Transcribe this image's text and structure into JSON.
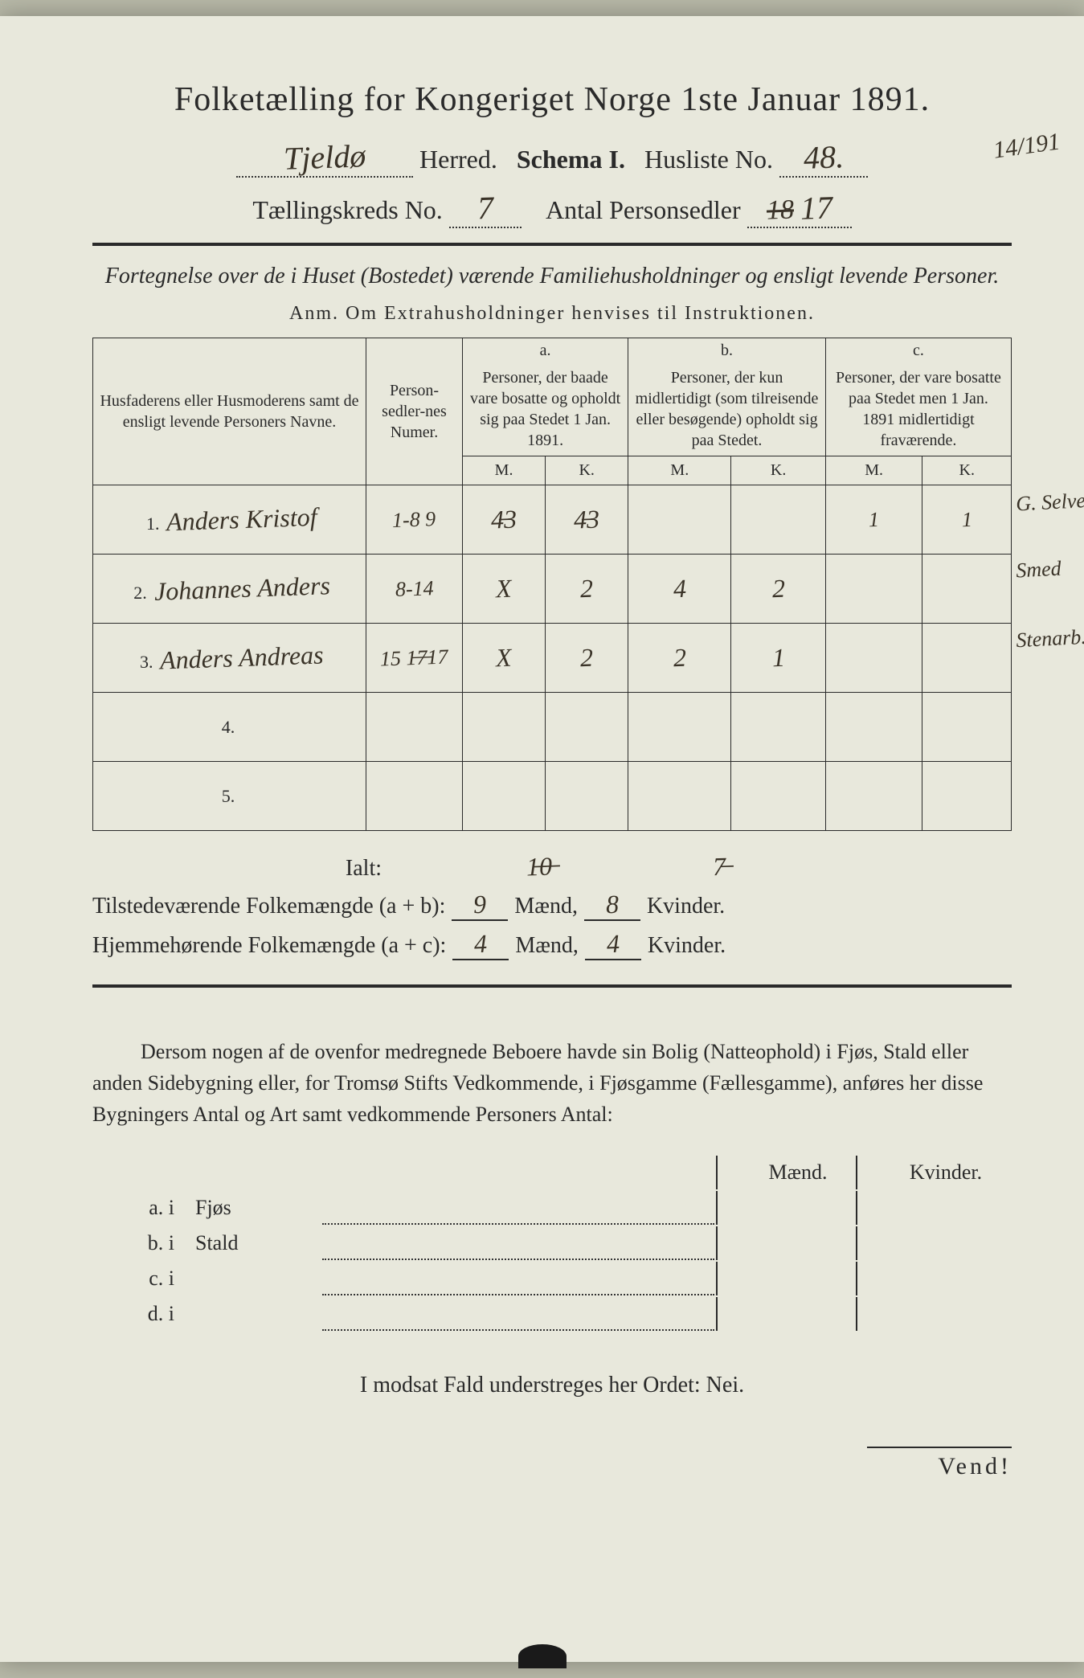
{
  "title": "Folketælling for Kongeriget Norge 1ste Januar 1891.",
  "herred_hw": "Tjeldø",
  "herred_label": "Herred.",
  "schema": "Schema I.",
  "husliste_label": "Husliste No.",
  "husliste_hw": "48.",
  "margin_note": "14/191",
  "kreds_label": "Tællingskreds No.",
  "kreds_hw": "7",
  "antal_label": "Antal Personsedler",
  "antal_hw": "17",
  "antal_struck": "18",
  "subtitle": "Fortegnelse over de i Huset (Bostedet) værende Familiehusholdninger og ensligt levende Personer.",
  "anm": "Anm.  Om Extrahusholdninger henvises til Instruktionen.",
  "hdr": {
    "name": "Husfaderens eller Husmoderens samt de ensligt levende Personers Navne.",
    "num": "Person-sedler-nes Numer.",
    "a_top": "a.",
    "a": "Personer, der baade vare bosatte og opholdt sig paa Stedet 1 Jan. 1891.",
    "b_top": "b.",
    "b": "Personer, der kun midlertidigt (som tilreisende eller besøgende) opholdt sig paa Stedet.",
    "c_top": "c.",
    "c": "Personer, der vare bosatte paa Stedet men 1 Jan. 1891 midlertidigt fraværende.",
    "m": "M.",
    "k": "K."
  },
  "rows": [
    {
      "n": "1.",
      "name": "Anders Kristof",
      "num": "1-8 9",
      "am": "4̶3",
      "ak": "4̶3",
      "bm": "",
      "bk": "",
      "cm": "1",
      "ck": "1",
      "note": "G. Selvei. Fisker"
    },
    {
      "n": "2.",
      "name": "Johannes Anders",
      "num": "8-14",
      "am": "X",
      "ak": "2",
      "bm": "4",
      "bk": "2",
      "cm": "",
      "ck": "",
      "note": "Smed"
    },
    {
      "n": "3.",
      "name": "Anders Andreas",
      "num": "15 1̶7̶17",
      "am": "X",
      "ak": "2",
      "bm": "2",
      "bk": "1",
      "cm": "",
      "ck": "",
      "note": "Stenarb."
    },
    {
      "n": "4.",
      "name": "",
      "num": "",
      "am": "",
      "ak": "",
      "bm": "",
      "bk": "",
      "cm": "",
      "ck": "",
      "note": ""
    },
    {
      "n": "5.",
      "name": "",
      "num": "",
      "am": "",
      "ak": "",
      "bm": "",
      "bk": "",
      "cm": "",
      "ck": "",
      "note": ""
    }
  ],
  "ialt": "Ialt:",
  "ialt_hw1": "1̶0̶",
  "ialt_hw2": "7̶",
  "tot1_label": "Tilstedeværende Folkemængde (a + b):",
  "tot1_m": "9",
  "tot1_k": "8",
  "tot2_label": "Hjemmehørende Folkemængde (a + c):",
  "tot2_m": "4",
  "tot2_k": "4",
  "maend": "Mænd,",
  "kvinder": "Kvinder.",
  "para": "Dersom nogen af de ovenfor medregnede Beboere havde sin Bolig (Natteophold) i Fjøs, Stald eller anden Sidebygning eller, for Tromsø Stifts Vedkommende, i Fjøsgamme (Fællesgamme), anføres her disse Bygningers Antal og Art samt vedkommende Personers Antal:",
  "mk_m": "Mænd.",
  "mk_k": "Kvinder.",
  "sub": [
    {
      "l": "a.  i",
      "t": "Fjøs"
    },
    {
      "l": "b.  i",
      "t": "Stald"
    },
    {
      "l": "c.  i",
      "t": ""
    },
    {
      "l": "d.  i",
      "t": ""
    }
  ],
  "nei": "I modsat Fald understreges her Ordet: Nei.",
  "vend": "Vend!"
}
